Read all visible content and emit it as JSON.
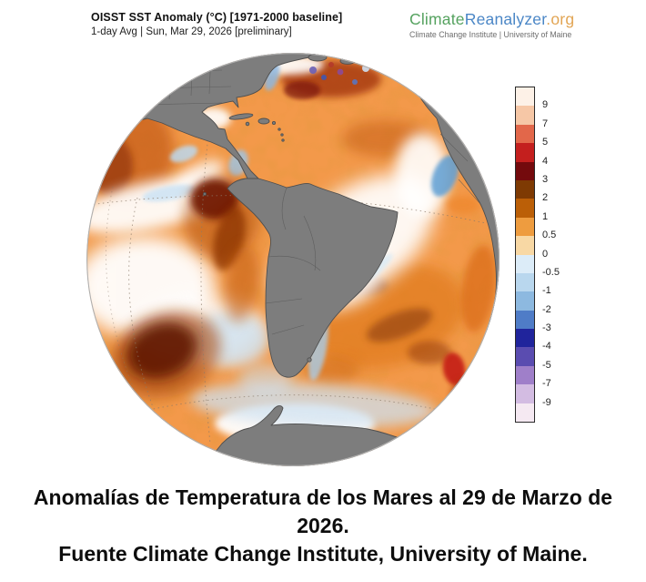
{
  "header": {
    "title": "OISST SST Anomaly (°C) [1971-2000 baseline]",
    "subtitle": "1-day Avg | Sun, Mar 29, 2026 [preliminary]"
  },
  "logo": {
    "part_climate": "Climate",
    "part_reanalyzer": "Reanalyzer",
    "part_org": ".org",
    "tagline": "Climate Change Institute | University of Maine",
    "colors": {
      "climate": "#55a25f",
      "reanalyzer": "#4a86c6",
      "org": "#e2a554"
    }
  },
  "colorbar": {
    "ticks": [
      "9",
      "7",
      "5",
      "4",
      "3",
      "2",
      "1",
      "0.5",
      "0",
      "-0.5",
      "-1",
      "-2",
      "-3",
      "-4",
      "-5",
      "-7",
      "-9"
    ],
    "colors": [
      "#fdf1e7",
      "#f6c7a6",
      "#e2674a",
      "#c41f1e",
      "#740a0d",
      "#7e3a03",
      "#bb5f07",
      "#ee9c3f",
      "#f8d8a4",
      "#dcecf8",
      "#b9d7ee",
      "#8db9e0",
      "#4f7cc7",
      "#20249c",
      "#5a4cb0",
      "#9f7fc9",
      "#d3bce2",
      "#f5e9f2"
    ],
    "units": "°C"
  },
  "caption": {
    "line1": "Anomalías de Temperatura de los Mares al 29 de Marzo de 2026.",
    "line2": "Fuente Climate Change Institute, University of Maine."
  },
  "chart_data": {
    "type": "heatmap",
    "subtype": "geographic-sst-anomaly-globe",
    "title": "OISST SST Anomaly (°C) [1971-2000 baseline]",
    "subtitle": "1-day Avg | Sun, Mar 29, 2026 [preliminary]",
    "projection": "orthographic globe centered on South America / Atlantic",
    "units": "°C",
    "baseline": "1971-2000",
    "colorbar": {
      "orientation": "vertical",
      "tick_values": [
        9,
        7,
        5,
        4,
        3,
        2,
        1,
        0.5,
        0,
        -0.5,
        -1,
        -2,
        -3,
        -4,
        -5,
        -7,
        -9
      ],
      "range": [
        -10,
        10
      ],
      "positive_colors_hint": "white → tan → orange → brown → dark maroon → red → salmon → pale pink",
      "negative_colors_hint": "white → pale blue → blue → navy → violet → light purple → pale lavender"
    },
    "notable_features": [
      "Widespread warm anomalies (+0.5 to +3 °C, orange) across most of the Pacific and Atlantic",
      "Strong warm blob (> +3 °C, dark maroon) in the southeast Pacific west of southern Chile",
      "Dark warm anomaly hugging the Ecuador/Peru coast",
      "Near-neutral white band along the equatorial Pacific and central tropical Atlantic",
      "Mottled dark red patches in the northwest Atlantic with small cold (blue/purple) speckles near the subpolar margin",
      "Cool blue upwelling streak along the West African coast and along the Malvinas current off Argentina",
      "Light-blue cool band in the Southern Ocean fringing white sea ice around Antarctica",
      "Bright red warm spot near the Brazil–Malvinas confluence at the eastern limb",
      "Continents masked in gray: North America, South America, Africa, Antarctica"
    ]
  }
}
